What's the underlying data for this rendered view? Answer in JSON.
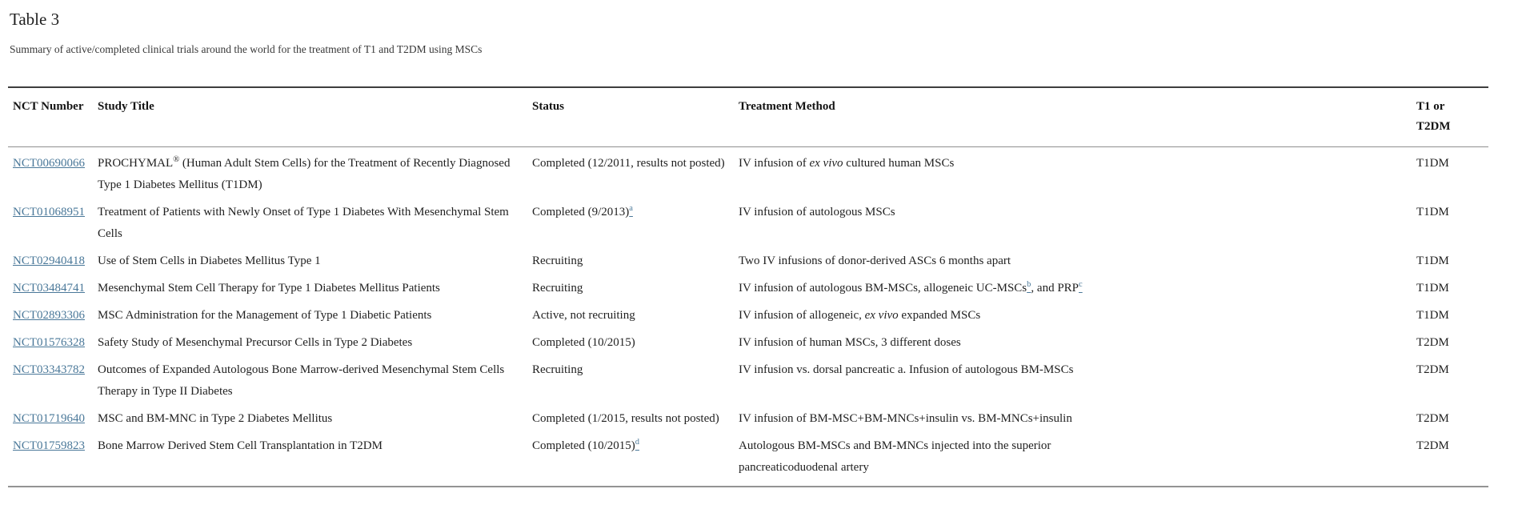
{
  "colors": {
    "link": "#4a7899",
    "text": "#1f1f1f"
  },
  "caption": {
    "label": "Table 3",
    "description": "Summary of active/completed clinical trials around the world for the treatment of T1 and T2DM using MSCs"
  },
  "table": {
    "columns": [
      "NCT Number",
      "Study Title",
      "Status",
      "Treatment Method",
      "T1 or T2DM"
    ],
    "rows": [
      {
        "nct": "NCT00690066",
        "title": [
          {
            "t": "PROCHYMAL"
          },
          {
            "t": "®",
            "sup": true
          },
          {
            "t": " (Human Adult Stem Cells) for the Treatment of Recently Diagnosed Type 1 Diabetes Mellitus (T1DM)"
          }
        ],
        "status": [
          {
            "t": "Completed (12/2011, results not posted)"
          }
        ],
        "treatment": [
          {
            "t": "IV infusion of "
          },
          {
            "t": "ex vivo",
            "i": true
          },
          {
            "t": " cultured human MSCs"
          }
        ],
        "type": "T1DM"
      },
      {
        "nct": "NCT01068951",
        "title": [
          {
            "t": "Treatment of Patients with Newly Onset of Type 1 Diabetes With Mesenchymal Stem Cells"
          }
        ],
        "status": [
          {
            "t": "Completed (9/2013)"
          },
          {
            "t": "a",
            "sup": true,
            "link": true
          }
        ],
        "treatment": [
          {
            "t": "IV infusion of autologous MSCs"
          }
        ],
        "type": "T1DM"
      },
      {
        "nct": "NCT02940418",
        "title": [
          {
            "t": "Use of Stem Cells in Diabetes Mellitus Type 1"
          }
        ],
        "status": [
          {
            "t": "Recruiting"
          }
        ],
        "treatment": [
          {
            "t": "Two IV infusions of donor-derived ASCs 6 months apart"
          }
        ],
        "type": "T1DM"
      },
      {
        "nct": "NCT03484741",
        "title": [
          {
            "t": "Mesenchymal Stem Cell Therapy for Type 1 Diabetes Mellitus Patients"
          }
        ],
        "status": [
          {
            "t": "Recruiting"
          }
        ],
        "treatment": [
          {
            "t": "IV infusion of autologous BM-MSCs, allogeneic UC-MSCs"
          },
          {
            "t": "b",
            "sup": true,
            "link": true
          },
          {
            "t": ", and PRP"
          },
          {
            "t": "c",
            "sup": true,
            "link": true
          }
        ],
        "type": "T1DM"
      },
      {
        "nct": "NCT02893306",
        "title": [
          {
            "t": "MSC Administration for the Management of Type 1 Diabetic Patients"
          }
        ],
        "status": [
          {
            "t": "Active, not recruiting"
          }
        ],
        "treatment": [
          {
            "t": "IV infusion of allogeneic, "
          },
          {
            "t": "ex vivo",
            "i": true
          },
          {
            "t": " expanded MSCs"
          }
        ],
        "type": "T1DM"
      },
      {
        "nct": "NCT01576328",
        "title": [
          {
            "t": "Safety Study of Mesenchymal Precursor Cells in Type 2 Diabetes"
          }
        ],
        "status": [
          {
            "t": "Completed (10/2015)"
          }
        ],
        "treatment": [
          {
            "t": "IV infusion of human MSCs, 3 different doses"
          }
        ],
        "type": "T2DM"
      },
      {
        "nct": "NCT03343782",
        "title": [
          {
            "t": "Outcomes of Expanded Autologous Bone Marrow-derived Mesenchymal Stem Cells Therapy in Type II Diabetes"
          }
        ],
        "status": [
          {
            "t": "Recruiting"
          }
        ],
        "treatment": [
          {
            "t": "IV infusion vs. dorsal pancreatic a. Infusion of autologous BM-MSCs"
          }
        ],
        "type": "T2DM"
      },
      {
        "nct": "NCT01719640",
        "title": [
          {
            "t": "MSC and BM-MNC in Type 2 Diabetes Mellitus"
          }
        ],
        "status": [
          {
            "t": "Completed (1/2015, results not posted)"
          }
        ],
        "treatment": [
          {
            "t": "IV infusion of BM-MSC+BM-MNCs+insulin vs. BM-MNCs+insulin"
          }
        ],
        "type": "T2DM"
      },
      {
        "nct": "NCT01759823",
        "title": [
          {
            "t": "Bone Marrow Derived Stem Cell Transplantation in T2DM"
          }
        ],
        "status": [
          {
            "t": "Completed (10/2015)"
          },
          {
            "t": "d",
            "sup": true,
            "link": true
          }
        ],
        "treatment": [
          {
            "t": "Autologous BM-MSCs and BM-MNCs injected into the superior"
          },
          {
            "br": true
          },
          {
            "t": "pancreaticoduodenal artery"
          }
        ],
        "type": "T2DM"
      }
    ]
  }
}
